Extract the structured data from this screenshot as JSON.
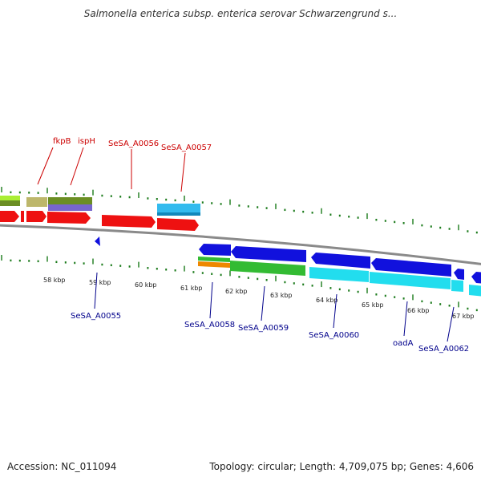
{
  "title": "Salmonella enterica subsp. enterica serovar Schwarzengrund s...",
  "footer": {
    "accession": "Accession: NC_011094",
    "stats": "Topology: circular; Length: 4,709,075 bp; Genes: 4,606"
  },
  "colors": {
    "label_top": "#cc0000",
    "label_bottom": "#00008b",
    "tick": "#1a7a1a",
    "backbone": "#8a8a8a",
    "red": "#ee1111",
    "blue": "#1111dd",
    "cyan": "#22ddee",
    "sky": "#33bbee",
    "green": "#33bb33",
    "olive": "#6b8e23",
    "khaki": "#bdb76b",
    "purple": "#7766cc",
    "orange": "#ee8800",
    "lime": "#aaee33"
  },
  "scale_labels": [
    "58 kbp",
    "59 kbp",
    "60 kbp",
    "61 kbp",
    "62 kbp",
    "63 kbp",
    "64 kbp",
    "65 kbp",
    "66 kbp",
    "67 kbp"
  ],
  "top_gene_labels": [
    "fkpB",
    "ispH",
    "SeSA_A0056",
    "SeSA_A0057"
  ],
  "bottom_gene_labels": [
    "SeSA_A0055",
    "SeSA_A0058",
    "SeSA_A0059",
    "SeSA_A0060",
    "oadA",
    "SeSA_A0062"
  ]
}
